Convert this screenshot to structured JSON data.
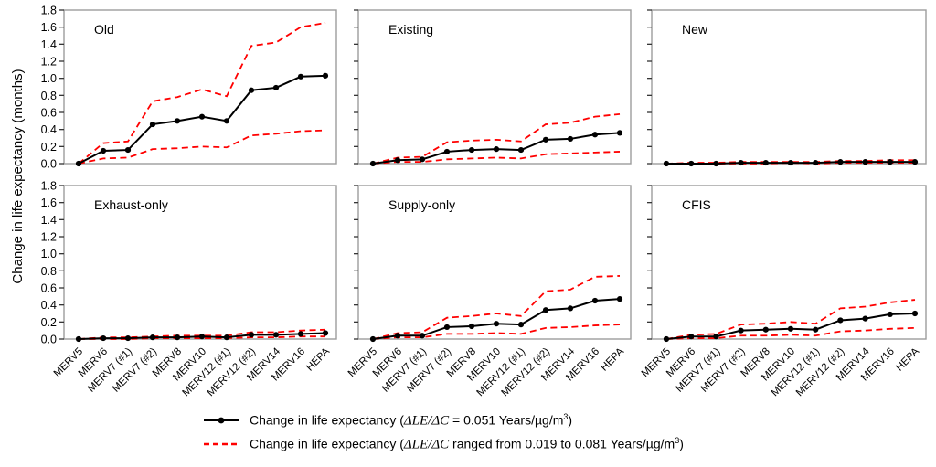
{
  "axes": {
    "y_title": "Change in life expectancy (months)"
  },
  "chart_data": {
    "type": "line",
    "categories": [
      "MERV5",
      "MERV6",
      "MERV7 (#1)",
      "MERV7 (#2)",
      "MERV8",
      "MERV10",
      "MERV12 (#1)",
      "MERV12 (#2)",
      "MERV14",
      "MERV16",
      "HEPA"
    ],
    "ylim": [
      0,
      1.8
    ],
    "ytick_labels": [
      "0.0",
      "0.2",
      "0.4",
      "0.6",
      "0.8",
      "1.0",
      "1.2",
      "1.4",
      "1.6",
      "1.8"
    ],
    "grid": false,
    "legend_position": "bottom",
    "colors": {
      "central": "#000000",
      "bounds": "#ff0000",
      "panel_border": "#9c9c9c",
      "tick": "#333333"
    },
    "panels": [
      {
        "label": "Old",
        "series": [
          {
            "name": "central",
            "values": [
              0.0,
              0.15,
              0.16,
              0.46,
              0.5,
              0.55,
              0.5,
              0.86,
              0.89,
              1.02,
              1.03
            ]
          },
          {
            "name": "upper",
            "values": [
              0.0,
              0.24,
              0.26,
              0.73,
              0.78,
              0.87,
              0.79,
              1.38,
              1.42,
              1.6,
              1.65
            ]
          },
          {
            "name": "lower",
            "values": [
              0.0,
              0.06,
              0.07,
              0.17,
              0.18,
              0.2,
              0.19,
              0.33,
              0.35,
              0.38,
              0.39
            ]
          }
        ]
      },
      {
        "label": "Existing",
        "series": [
          {
            "name": "central",
            "values": [
              0.0,
              0.04,
              0.05,
              0.14,
              0.16,
              0.17,
              0.16,
              0.28,
              0.29,
              0.34,
              0.36
            ]
          },
          {
            "name": "upper",
            "values": [
              0.0,
              0.07,
              0.08,
              0.25,
              0.27,
              0.28,
              0.26,
              0.46,
              0.48,
              0.55,
              0.58
            ]
          },
          {
            "name": "lower",
            "values": [
              0.0,
              0.02,
              0.02,
              0.05,
              0.06,
              0.07,
              0.06,
              0.11,
              0.12,
              0.13,
              0.14
            ]
          }
        ]
      },
      {
        "label": "New",
        "series": [
          {
            "name": "central",
            "values": [
              0.0,
              0.0,
              0.0,
              0.01,
              0.01,
              0.01,
              0.01,
              0.02,
              0.02,
              0.02,
              0.02
            ]
          },
          {
            "name": "upper",
            "values": [
              0.0,
              0.01,
              0.01,
              0.02,
              0.02,
              0.02,
              0.02,
              0.03,
              0.03,
              0.04,
              0.04
            ]
          },
          {
            "name": "lower",
            "values": [
              0.0,
              0.0,
              0.0,
              0.0,
              0.0,
              0.01,
              0.0,
              0.01,
              0.01,
              0.01,
              0.01
            ]
          }
        ]
      },
      {
        "label": "Exhaust-only",
        "series": [
          {
            "name": "central",
            "values": [
              0.0,
              0.01,
              0.01,
              0.02,
              0.02,
              0.03,
              0.02,
              0.05,
              0.05,
              0.06,
              0.07
            ]
          },
          {
            "name": "upper",
            "values": [
              0.0,
              0.02,
              0.02,
              0.03,
              0.04,
              0.04,
              0.04,
              0.08,
              0.08,
              0.1,
              0.11
            ]
          },
          {
            "name": "lower",
            "values": [
              0.0,
              0.0,
              0.0,
              0.01,
              0.01,
              0.01,
              0.01,
              0.02,
              0.02,
              0.03,
              0.03
            ]
          }
        ]
      },
      {
        "label": "Supply-only",
        "series": [
          {
            "name": "central",
            "values": [
              0.0,
              0.04,
              0.04,
              0.14,
              0.15,
              0.18,
              0.17,
              0.34,
              0.36,
              0.45,
              0.47
            ]
          },
          {
            "name": "upper",
            "values": [
              0.0,
              0.07,
              0.08,
              0.25,
              0.27,
              0.3,
              0.27,
              0.56,
              0.58,
              0.73,
              0.74
            ]
          },
          {
            "name": "lower",
            "values": [
              0.0,
              0.02,
              0.02,
              0.06,
              0.06,
              0.07,
              0.06,
              0.13,
              0.14,
              0.16,
              0.17
            ]
          }
        ]
      },
      {
        "label": "CFIS",
        "series": [
          {
            "name": "central",
            "values": [
              0.0,
              0.03,
              0.03,
              0.1,
              0.11,
              0.12,
              0.11,
              0.22,
              0.24,
              0.29,
              0.3
            ]
          },
          {
            "name": "upper",
            "values": [
              0.0,
              0.05,
              0.06,
              0.17,
              0.18,
              0.2,
              0.18,
              0.36,
              0.38,
              0.43,
              0.46
            ]
          },
          {
            "name": "lower",
            "values": [
              0.0,
              0.01,
              0.01,
              0.04,
              0.04,
              0.05,
              0.04,
              0.09,
              0.1,
              0.12,
              0.13
            ]
          }
        ]
      }
    ]
  },
  "legend": {
    "items": [
      {
        "marker": "black-solid-dot",
        "pre": "Change in life expectancy (",
        "italic": "ΔLE/ΔC",
        "post": " = 0.051 Years/µg/m",
        "sup": "3",
        "end": ")"
      },
      {
        "marker": "red-dashed",
        "pre": "Change in life expectancy (",
        "italic": "ΔLE/ΔC",
        "post": " ranged from 0.019 to 0.081 Years/µg/m",
        "sup": "3",
        "end": ")"
      }
    ]
  }
}
